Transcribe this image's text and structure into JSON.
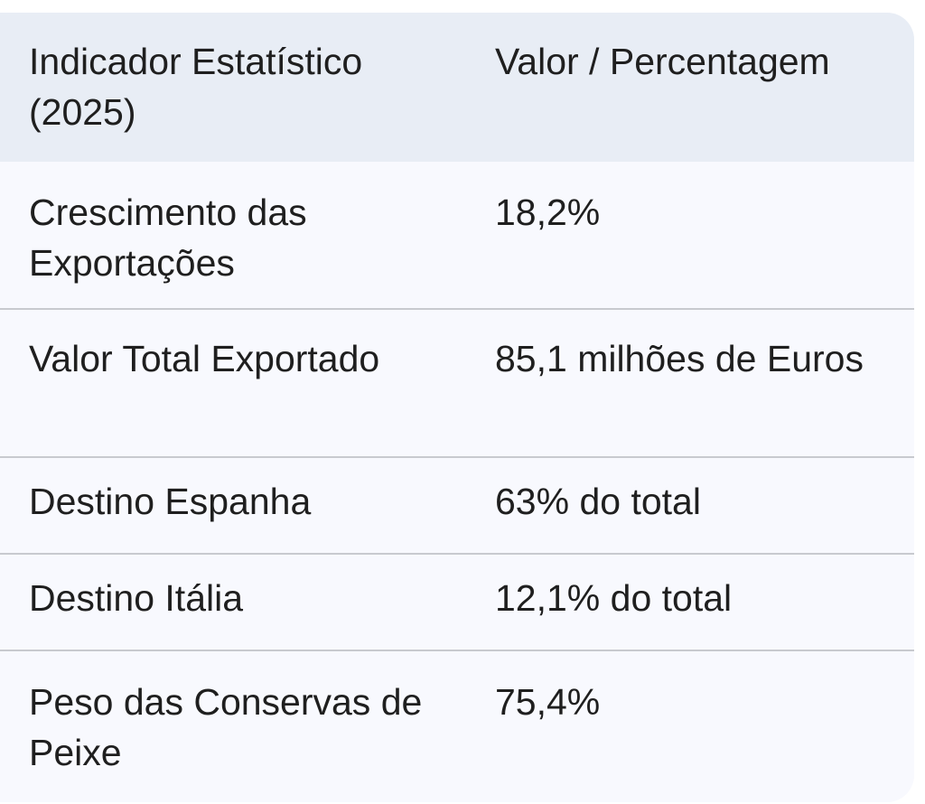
{
  "table": {
    "headers": [
      "Indicador Estatístico (2025)",
      "Valor / Percentagem"
    ],
    "rows": [
      {
        "indicator": "Crescimento das Exportações",
        "value": "18,2%"
      },
      {
        "indicator": "Valor Total Exportado",
        "value": "85,1 milhões de Euros"
      },
      {
        "indicator": "Destino Espanha",
        "value": "63% do total"
      },
      {
        "indicator": "Destino Itália",
        "value": "12,1% do total"
      },
      {
        "indicator": "Peso das Conservas de Peixe",
        "value": "75,4%"
      }
    ]
  },
  "colors": {
    "header_bg": "#e8edf5",
    "body_bg": "#f8f9fe",
    "text": "#1f1f1f",
    "divider": "#c8cacf"
  }
}
